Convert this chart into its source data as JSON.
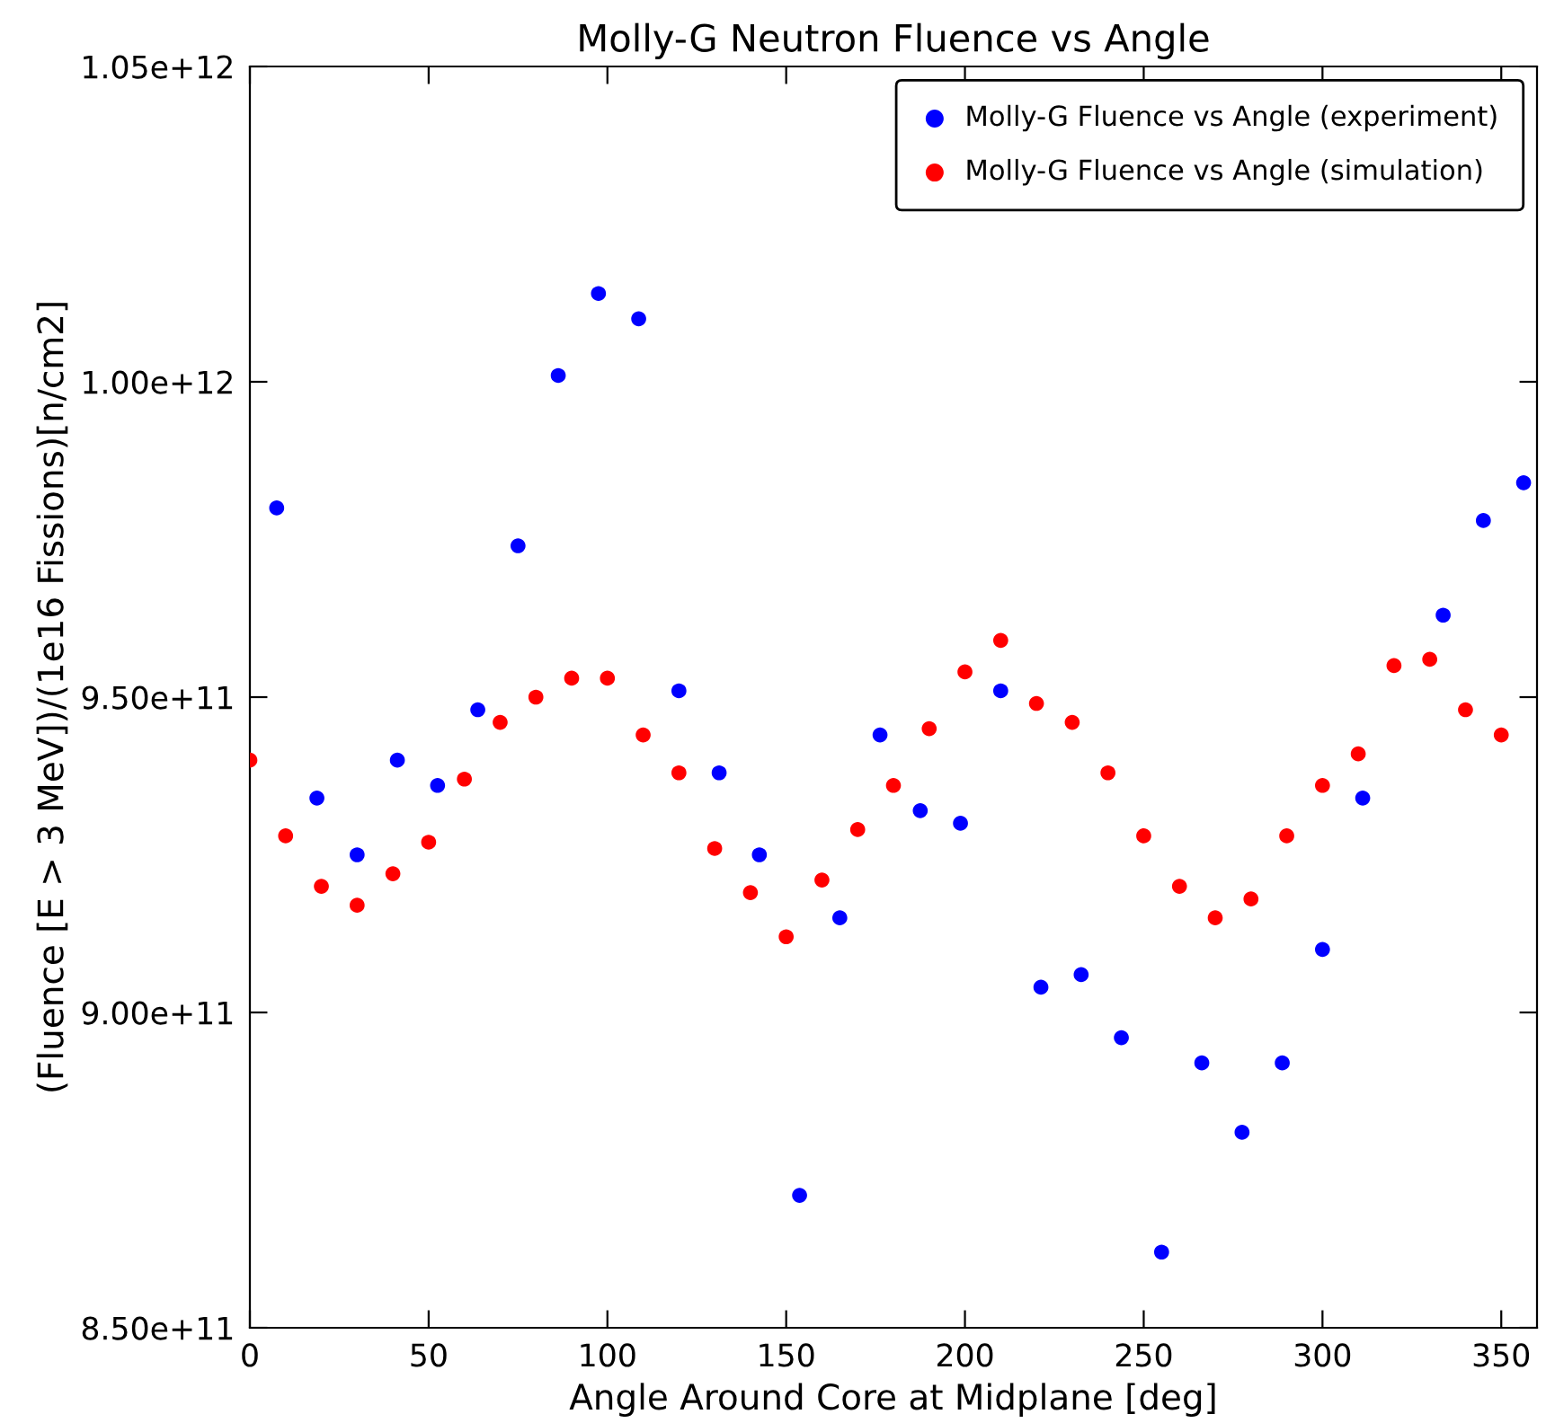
{
  "chart_data": {
    "type": "scatter",
    "title": "Molly-G Neutron Fluence vs Angle",
    "xlabel": "Angle Around Core at Midplane [deg]",
    "ylabel": "(Fluence [E > 3 MeV])/(1e16 Fissions)[n/cm2]",
    "series": [
      {
        "name": "Molly-G Fluence vs Angle (experiment)",
        "color": "#0000ff",
        "x": [
          7.5,
          18.75,
          30,
          41.25,
          52.5,
          63.75,
          75,
          86.25,
          97.5,
          108.75,
          120,
          131.25,
          142.5,
          153.75,
          165,
          176.25,
          187.5,
          198.75,
          210,
          221.25,
          232.5,
          243.75,
          255,
          266.25,
          277.5,
          288.75,
          300,
          311.25,
          333.75,
          345,
          356.25
        ],
        "values": [
          980000000000.0,
          934000000000.0,
          925000000000.0,
          940000000000.0,
          936000000000.0,
          948000000000.0,
          974000000000.0,
          1001000000000.0,
          1014000000000.0,
          1010000000000.0,
          951000000000.0,
          938000000000.0,
          925000000000.0,
          871000000000.0,
          915000000000.0,
          944000000000.0,
          932000000000.0,
          930000000000.0,
          951000000000.0,
          904000000000.0,
          906000000000.0,
          896000000000.0,
          862000000000.0,
          892000000000.0,
          881000000000.0,
          892000000000.0,
          910000000000.0,
          934000000000.0,
          963000000000.0,
          978000000000.0,
          984000000000.0
        ]
      },
      {
        "name": "Molly-G Fluence vs Angle (simulation)",
        "color": "#ff0000",
        "x": [
          0,
          10,
          20,
          30,
          40,
          50,
          60,
          70,
          80,
          90,
          100,
          110,
          120,
          130,
          140,
          150,
          160,
          170,
          180,
          190,
          200,
          210,
          220,
          230,
          240,
          250,
          260,
          270,
          280,
          290,
          300,
          310,
          320,
          330,
          340,
          350
        ],
        "values": [
          940000000000.0,
          928000000000.0,
          920000000000.0,
          917000000000.0,
          922000000000.0,
          927000000000.0,
          937000000000.0,
          946000000000.0,
          950000000000.0,
          953000000000.0,
          953000000000.0,
          944000000000.0,
          938000000000.0,
          926000000000.0,
          919000000000.0,
          912000000000.0,
          921000000000.0,
          929000000000.0,
          936000000000.0,
          945000000000.0,
          954000000000.0,
          959000000000.0,
          949000000000.0,
          946000000000.0,
          938000000000.0,
          928000000000.0,
          920000000000.0,
          915000000000.0,
          918000000000.0,
          928000000000.0,
          936000000000.0,
          941000000000.0,
          955000000000.0,
          956000000000.0,
          948000000000.0,
          944000000000.0
        ]
      }
    ],
    "xlim": [
      0,
      360
    ],
    "xticks": [
      0,
      50,
      100,
      150,
      200,
      250,
      300,
      350
    ],
    "ylim": [
      850000000000.0,
      1050000000000.0
    ],
    "yticks": [
      {
        "value": 850000000000.0,
        "label": "8.50e+11"
      },
      {
        "value": 900000000000.0,
        "label": "9.00e+11"
      },
      {
        "value": 950000000000.0,
        "label": "9.50e+11"
      },
      {
        "value": 1000000000000.0,
        "label": "1.00e+12"
      },
      {
        "value": 1050000000000.0,
        "label": "1.05e+12"
      }
    ],
    "marker": "circle",
    "legend": "top right",
    "grid": false
  }
}
